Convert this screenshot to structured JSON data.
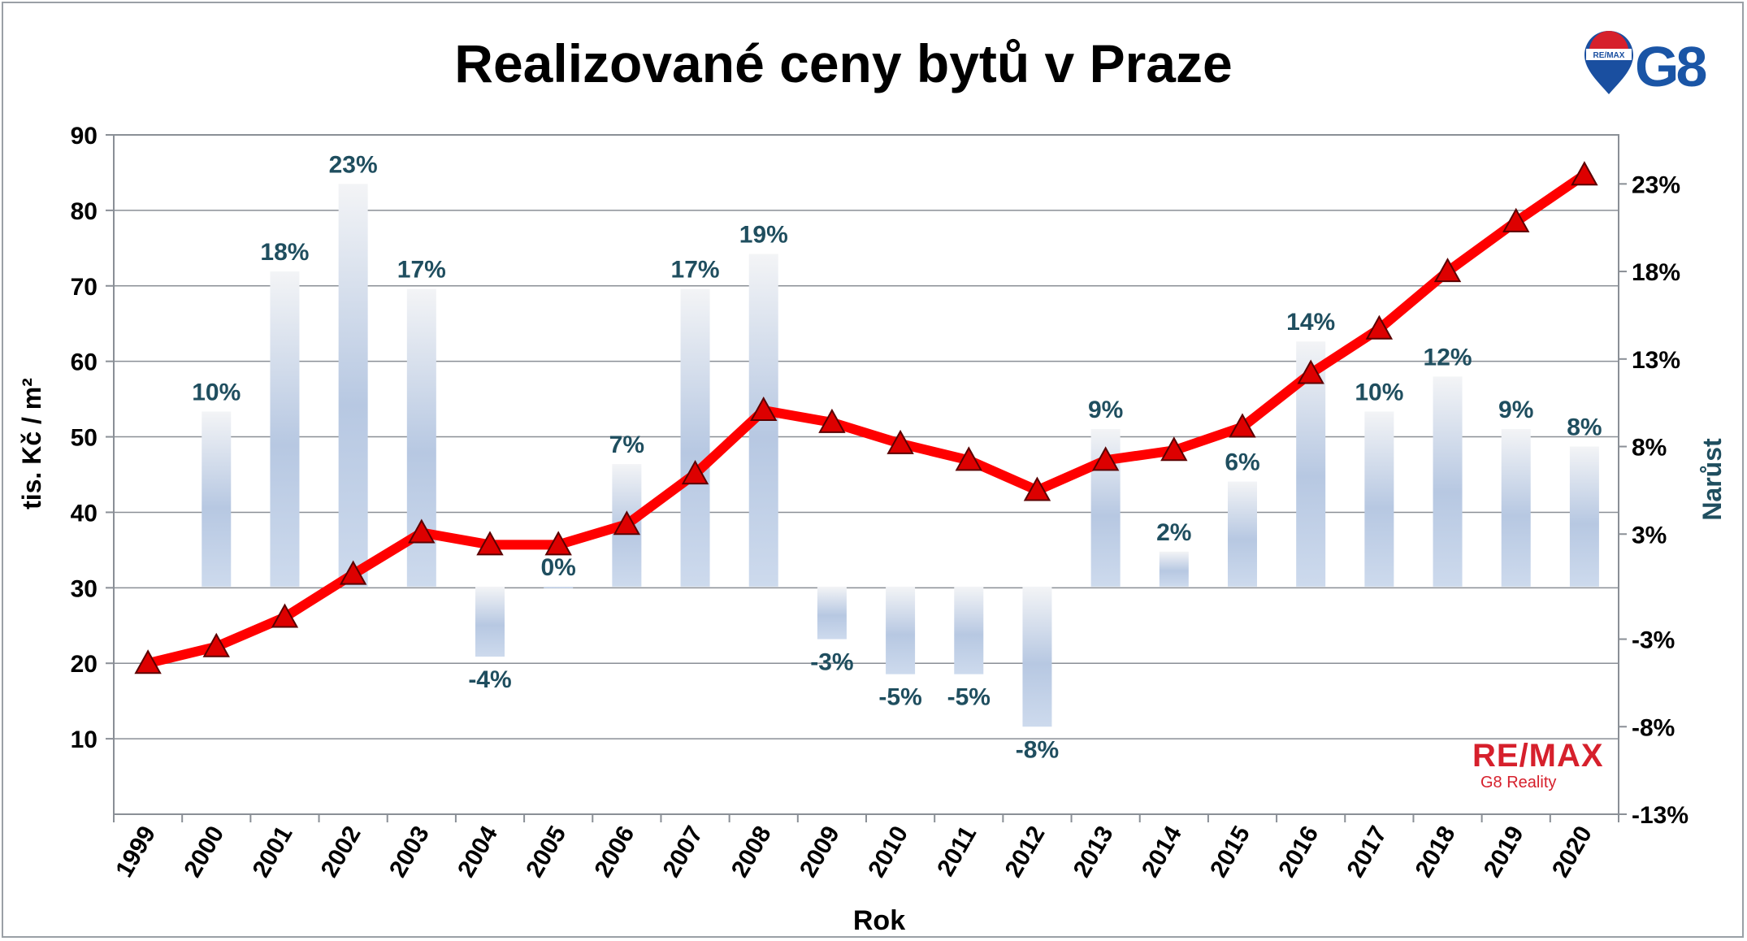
{
  "chart_data": {
    "type": "bar+line",
    "title": "Realizované ceny bytů v Praze",
    "xlabel": "Rok",
    "ylabel": "tis. Kč / m²",
    "y2label": "Narůst",
    "categories": [
      "1999",
      "2000",
      "2001",
      "2002",
      "2003",
      "2004",
      "2005",
      "2006",
      "2007",
      "2008",
      "2009",
      "2010",
      "2011",
      "2012",
      "2013",
      "2014",
      "2015",
      "2016",
      "2017",
      "2018",
      "2019",
      "2020"
    ],
    "series": [
      {
        "type": "line",
        "axis": "left",
        "color": "#ff0000",
        "values": [
          20,
          22.2,
          26.1,
          31.8,
          37.3,
          35.7,
          35.7,
          38.4,
          45.1,
          53.5,
          51.9,
          49.1,
          46.9,
          42.9,
          46.9,
          48.2,
          51.3,
          58.4,
          64.3,
          71.9,
          78.5,
          84.7
        ]
      },
      {
        "type": "bar",
        "axis": "right",
        "values": [
          null,
          10,
          18,
          23,
          17,
          -4,
          0,
          7,
          17,
          19,
          -3,
          -5,
          -5,
          -8,
          9,
          2,
          6,
          14,
          10,
          12,
          9,
          8
        ],
        "labels": [
          "",
          "10%",
          "18%",
          "23%",
          "17%",
          "-4%",
          "0%",
          "7%",
          "17%",
          "19%",
          "-3%",
          "-5%",
          "-5%",
          "-8%",
          "9%",
          "2%",
          "6%",
          "14%",
          "10%",
          "12%",
          "9%",
          "8%"
        ]
      }
    ],
    "y_ticks": [
      "90",
      "80",
      "70",
      "60",
      "50",
      "40",
      "30",
      "20",
      "10"
    ],
    "y_range": [
      0,
      90
    ],
    "y2_ticks": [
      "23%",
      "18%",
      "13%",
      "8%",
      "3%",
      "-3%",
      "-8%",
      "-13%"
    ],
    "y2_range": [
      -13,
      25.8
    ],
    "grid": true,
    "legend": "none"
  },
  "logos": {
    "top_right_brand": "RE/MAX",
    "top_right_text": "G8",
    "bottom_right_brand": "RE/MAX",
    "bottom_right_sub": "G8 Reality"
  }
}
